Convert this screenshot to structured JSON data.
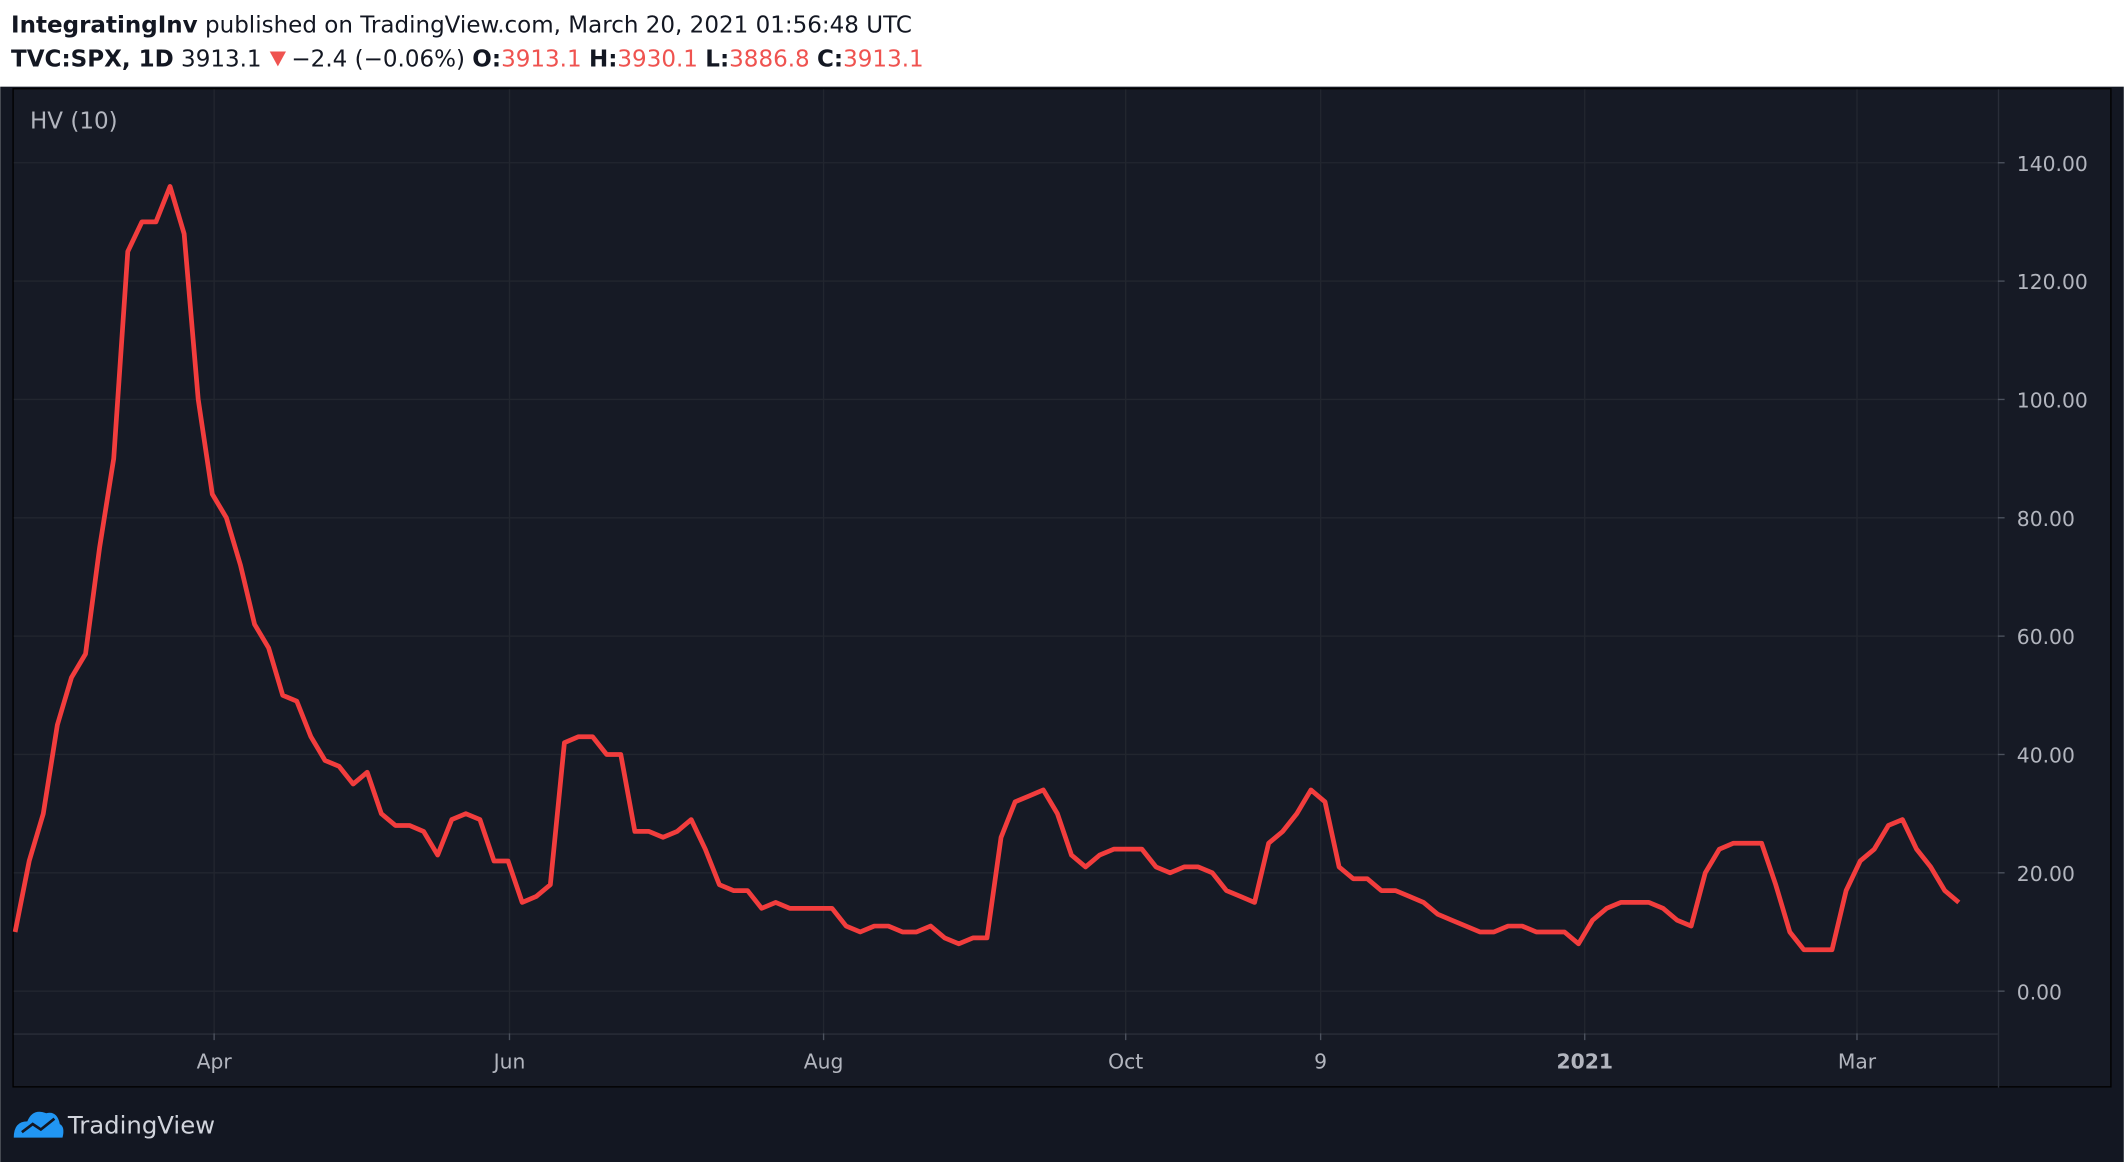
{
  "header": {
    "author": "IntegratingInv",
    "published": "published on TradingView.com, March 20, 2021 01:56:48 UTC",
    "symbol": "TVC:SPX, 1D",
    "last": "3913.1",
    "change": "−2.4 (−0.06%)",
    "open_label": "O:",
    "open": "3913.1",
    "high_label": "H:",
    "high": "3930.1",
    "low_label": "L:",
    "low": "3886.8",
    "close_label": "C:",
    "close": "3913.1"
  },
  "footer": {
    "brand": "TradingView"
  },
  "chart_data": {
    "type": "line",
    "title": "HV (10)",
    "series": [
      {
        "name": "HV (10)",
        "color": "#f23d3d",
        "values": [
          10,
          22,
          30,
          45,
          53,
          57,
          75,
          90,
          125,
          130,
          130,
          136,
          128,
          100,
          84,
          80,
          72,
          62,
          58,
          50,
          49,
          43,
          39,
          38,
          35,
          37,
          30,
          28,
          28,
          27,
          23,
          29,
          30,
          29,
          22,
          22,
          15,
          16,
          18,
          42,
          43,
          43,
          40,
          40,
          27,
          27,
          26,
          27,
          29,
          24,
          18,
          17,
          17,
          14,
          15,
          14,
          14,
          14,
          14,
          11,
          10,
          11,
          11,
          10,
          10,
          11,
          9,
          8,
          9,
          9,
          26,
          32,
          33,
          34,
          30,
          23,
          21,
          23,
          24,
          24,
          24,
          21,
          20,
          21,
          21,
          20,
          17,
          16,
          15,
          25,
          27,
          30,
          34,
          32,
          21,
          19,
          19,
          17,
          17,
          16,
          15,
          13,
          12,
          11,
          10,
          10,
          11,
          11,
          10,
          10,
          10,
          8,
          12,
          14,
          15,
          15,
          15,
          14,
          12,
          11,
          20,
          24,
          25,
          25,
          25,
          18,
          10,
          7,
          7,
          7,
          17,
          22,
          24,
          28,
          29,
          24,
          21,
          17,
          15
        ]
      }
    ],
    "xlim": [
      0,
      140.77
    ],
    "xticks": [
      {
        "value": 14.13,
        "label": "Apr"
      },
      {
        "value": 35.1,
        "label": "Jun"
      },
      {
        "value": 57.4,
        "label": "Aug"
      },
      {
        "value": 78.85,
        "label": "Oct"
      },
      {
        "value": 92.69,
        "label": "9"
      },
      {
        "value": 111.44,
        "label": "2021"
      },
      {
        "value": 130.77,
        "label": "Mar"
      }
    ],
    "ylim": [
      -6.9,
      152.4
    ],
    "yticks": [
      {
        "value": 0,
        "label": "0.00"
      },
      {
        "value": 20,
        "label": "20.00"
      },
      {
        "value": 40,
        "label": "40.00"
      },
      {
        "value": 60,
        "label": "60.00"
      },
      {
        "value": 80,
        "label": "80.00"
      },
      {
        "value": 100,
        "label": "100.00"
      },
      {
        "value": 120,
        "label": "120.00"
      },
      {
        "value": 140,
        "label": "140.00"
      }
    ],
    "grid": true
  }
}
